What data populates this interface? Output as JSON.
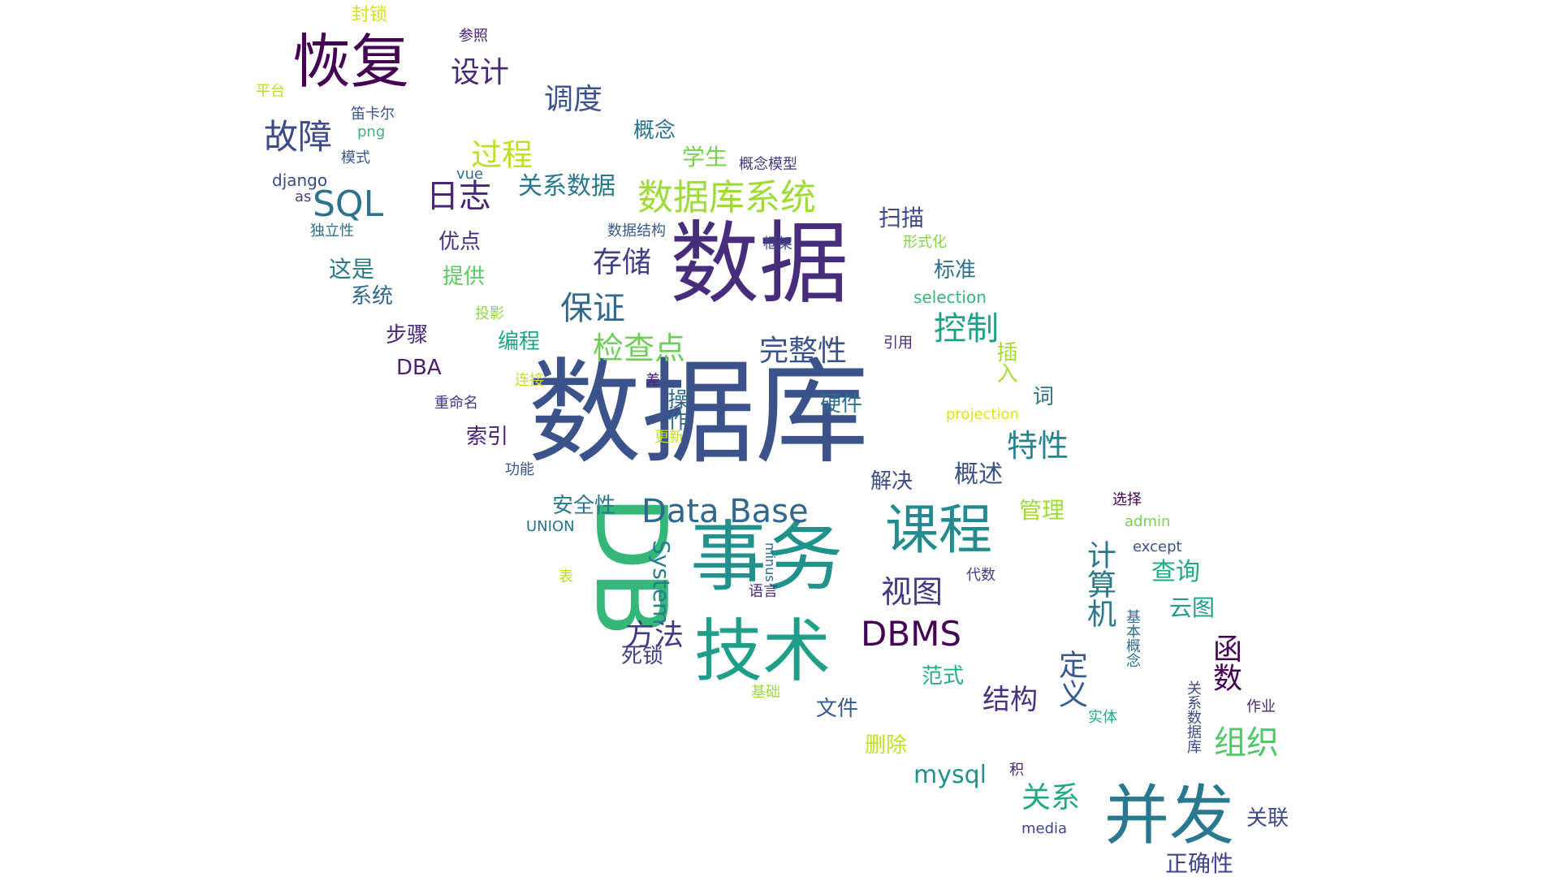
{
  "word_cloud": {
    "words": [
      {
        "text": "数据库",
        "color": "#3b528b"
      },
      {
        "text": "数据",
        "color": "#472d7b"
      },
      {
        "text": "事务",
        "color": "#21918c"
      },
      {
        "text": "技术",
        "color": "#1f9e89"
      },
      {
        "text": "DB",
        "color": "#35b779"
      },
      {
        "text": "并发",
        "color": "#2a788e"
      },
      {
        "text": "课程",
        "color": "#238a8d"
      },
      {
        "text": "恢复",
        "color": "#440154"
      },
      {
        "text": "数据库系统",
        "color": "#a0da39"
      },
      {
        "text": "Data Base",
        "color": "#31688e"
      },
      {
        "text": "DBMS",
        "color": "#440154"
      },
      {
        "text": "故障",
        "color": "#3e4989"
      },
      {
        "text": "SQL",
        "color": "#2c728e"
      },
      {
        "text": "日志",
        "color": "#482677"
      },
      {
        "text": "存储",
        "color": "#433e85"
      },
      {
        "text": "保证",
        "color": "#31688e"
      },
      {
        "text": "检查点",
        "color": "#6ece58"
      },
      {
        "text": "完整性",
        "color": "#3b528b"
      },
      {
        "text": "控制",
        "color": "#1fa188"
      },
      {
        "text": "特性",
        "color": "#25858e"
      },
      {
        "text": "视图",
        "color": "#453781"
      },
      {
        "text": "方法",
        "color": "#443983"
      },
      {
        "text": "计算机",
        "color": "#2a788e"
      },
      {
        "text": "定义",
        "color": "#38598c"
      },
      {
        "text": "函数",
        "color": "#440154"
      },
      {
        "text": "组织",
        "color": "#54c568"
      },
      {
        "text": "结构",
        "color": "#46327e"
      },
      {
        "text": "关系",
        "color": "#22a884"
      },
      {
        "text": "mysql",
        "color": "#21918c"
      },
      {
        "text": "正确性",
        "color": "#414487"
      },
      {
        "text": "调度",
        "color": "#3b528b"
      },
      {
        "text": "设计",
        "color": "#482878"
      },
      {
        "text": "过程",
        "color": "#bddf26"
      },
      {
        "text": "关系数据",
        "color": "#2a788e"
      },
      {
        "text": "概述",
        "color": "#3b528b"
      },
      {
        "text": "管理",
        "color": "#a0da39"
      },
      {
        "text": "查询",
        "color": "#22a884"
      },
      {
        "text": "云图",
        "color": "#1f9e89"
      },
      {
        "text": "System",
        "color": "#277f8e"
      },
      {
        "text": "学生",
        "color": "#7ad151"
      },
      {
        "text": "概念",
        "color": "#2c728e"
      },
      {
        "text": "扫描",
        "color": "#3e4989"
      },
      {
        "text": "这是",
        "color": "#2a788e"
      },
      {
        "text": "系统",
        "color": "#31688e"
      },
      {
        "text": "步骤",
        "color": "#482878"
      },
      {
        "text": "DBA",
        "color": "#482173"
      },
      {
        "text": "优点",
        "color": "#46327e"
      },
      {
        "text": "提供",
        "color": "#5ec962"
      },
      {
        "text": "编程",
        "color": "#20a386"
      },
      {
        "text": "操作",
        "color": "#31688e"
      },
      {
        "text": "硬件",
        "color": "#2d708e"
      },
      {
        "text": "索引",
        "color": "#482173"
      },
      {
        "text": "安全性",
        "color": "#2a788e"
      },
      {
        "text": "解决",
        "color": "#3e4989"
      },
      {
        "text": "标准",
        "color": "#2d708e"
      },
      {
        "text": "插入",
        "color": "#a5db36"
      },
      {
        "text": "词",
        "color": "#2c728e"
      },
      {
        "text": "文件",
        "color": "#38598c"
      },
      {
        "text": "范式",
        "color": "#29af7f"
      },
      {
        "text": "删除",
        "color": "#c2df23"
      },
      {
        "text": "关联",
        "color": "#3e4989"
      },
      {
        "text": "死锁",
        "color": "#433e85"
      },
      {
        "text": "封锁",
        "color": "#d2e21b"
      },
      {
        "text": "参照",
        "color": "#482173"
      },
      {
        "text": "平台",
        "color": "#b5de2b"
      },
      {
        "text": "笛卡尔",
        "color": "#3b528b"
      },
      {
        "text": "png",
        "color": "#35b779"
      },
      {
        "text": "模式",
        "color": "#39568c"
      },
      {
        "text": "django",
        "color": "#3e4989"
      },
      {
        "text": "as",
        "color": "#414487"
      },
      {
        "text": "vue",
        "color": "#2c728e"
      },
      {
        "text": "独立性",
        "color": "#2d708e"
      },
      {
        "text": "数据结构",
        "color": "#38598c"
      },
      {
        "text": "框架",
        "color": "#3e4989"
      },
      {
        "text": "形式化",
        "color": "#86d549"
      },
      {
        "text": "概念模型",
        "color": "#443a83"
      },
      {
        "text": "selection",
        "color": "#35b779"
      },
      {
        "text": "投影",
        "color": "#8fd744"
      },
      {
        "text": "引用",
        "color": "#482878"
      },
      {
        "text": "连接",
        "color": "#c8e020"
      },
      {
        "text": "差",
        "color": "#482475"
      },
      {
        "text": "重命名",
        "color": "#443983"
      },
      {
        "text": "projection",
        "color": "#dde318"
      },
      {
        "text": "更新",
        "color": "#c2df23"
      },
      {
        "text": "功能",
        "color": "#3b528b"
      },
      {
        "text": "UNION",
        "color": "#2c728e"
      },
      {
        "text": "minus",
        "color": "#31688e"
      },
      {
        "text": "表",
        "color": "#b5de2b"
      },
      {
        "text": "语言",
        "color": "#482878"
      },
      {
        "text": "代数",
        "color": "#433e85"
      },
      {
        "text": "基础",
        "color": "#a0da39"
      },
      {
        "text": "选择",
        "color": "#440154"
      },
      {
        "text": "admin",
        "color": "#7ad151"
      },
      {
        "text": "except",
        "color": "#3b528b"
      },
      {
        "text": "基本概念",
        "color": "#2d708e"
      },
      {
        "text": "关系数据库",
        "color": "#3e4989"
      },
      {
        "text": "作业",
        "color": "#482878"
      },
      {
        "text": "实体",
        "color": "#22a884"
      },
      {
        "text": "积",
        "color": "#482173"
      },
      {
        "text": "media",
        "color": "#414487"
      }
    ]
  }
}
